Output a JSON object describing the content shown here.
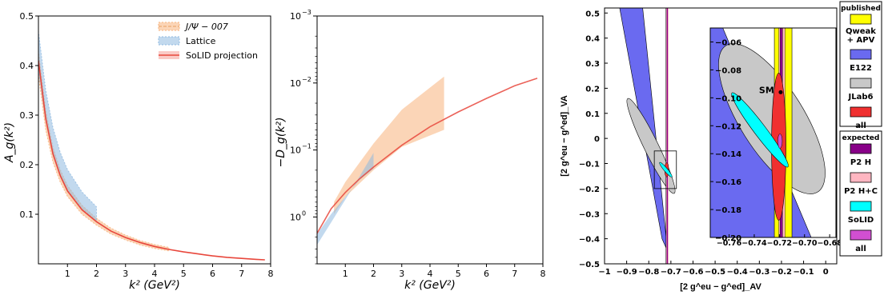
{
  "chart_data": [
    {
      "type": "line",
      "ylabel": "A_g(k²)",
      "xlabel": "k² (GeV²)",
      "xlim": [
        0,
        8
      ],
      "ylim": [
        0,
        0.5
      ],
      "xticks": [
        "1",
        "2",
        "3",
        "4",
        "5",
        "6",
        "7",
        "8"
      ],
      "yticks": [
        "0.1",
        "0.2",
        "0.3",
        "0.4",
        "0.5"
      ],
      "legend_position": "top-right",
      "legend": [
        "J/Ψ − 007",
        "Lattice",
        "SoLID projection"
      ],
      "series": [
        {
          "name": "J/Ψ − 007",
          "kind": "band",
          "color": "#f7b27b",
          "x": [
            0.0,
            0.25,
            0.5,
            0.75,
            1.0,
            1.5,
            2.0,
            2.5,
            3.0,
            3.5,
            4.0,
            4.5
          ],
          "y_low": [
            0.38,
            0.27,
            0.205,
            0.165,
            0.136,
            0.1,
            0.078,
            0.06,
            0.048,
            0.038,
            0.031,
            0.026
          ],
          "y_high": [
            0.43,
            0.31,
            0.235,
            0.19,
            0.158,
            0.118,
            0.092,
            0.072,
            0.058,
            0.047,
            0.039,
            0.033
          ]
        },
        {
          "name": "Lattice",
          "kind": "band",
          "color": "#8fb9e0",
          "x": [
            0.0,
            0.25,
            0.5,
            0.75,
            1.0,
            1.5,
            2.0
          ],
          "y_low": [
            0.39,
            0.29,
            0.225,
            0.18,
            0.15,
            0.112,
            0.087
          ],
          "y_high": [
            0.47,
            0.35,
            0.275,
            0.225,
            0.19,
            0.145,
            0.115
          ]
        },
        {
          "name": "SoLID projection",
          "kind": "line",
          "color": "#e8473c",
          "x": [
            0.0,
            0.25,
            0.5,
            0.75,
            1.0,
            1.5,
            2.0,
            2.5,
            3.0,
            3.5,
            4.0,
            4.5,
            5.0,
            5.5,
            6.0,
            6.5,
            7.0,
            7.5,
            7.8
          ],
          "y": [
            0.41,
            0.293,
            0.222,
            0.178,
            0.147,
            0.109,
            0.085,
            0.066,
            0.053,
            0.043,
            0.035,
            0.029,
            0.024,
            0.02,
            0.016,
            0.013,
            0.011,
            0.009,
            0.008
          ]
        }
      ]
    },
    {
      "type": "line",
      "ylabel": "−D_g(k²)",
      "xlabel": "k² (GeV²)",
      "yscale": "log (inverted)",
      "xlim": [
        0,
        8
      ],
      "ylim": [
        0.001,
        5
      ],
      "xticks": [
        "1",
        "2",
        "3",
        "4",
        "5",
        "6",
        "7",
        "8"
      ],
      "yticks": [
        {
          "base": "10",
          "exp": "−3",
          "value": 0.001
        },
        {
          "base": "10",
          "exp": "−2",
          "value": 0.01
        },
        {
          "base": "10",
          "exp": "−1",
          "value": 0.1
        },
        {
          "base": "10",
          "exp": "0",
          "value": 1
        }
      ],
      "series": [
        {
          "name": "J/Ψ − 007",
          "kind": "band",
          "color": "#f7b27b",
          "x": [
            0.6,
            1.0,
            2.0,
            3.0,
            4.5
          ],
          "y_low": [
            0.6,
            0.3,
            0.08,
            0.025,
            0.008
          ],
          "y_high": [
            0.9,
            0.5,
            0.2,
            0.09,
            0.05
          ]
        },
        {
          "name": "Lattice",
          "kind": "band",
          "color": "#8fb9e0",
          "x": [
            0.0,
            0.5,
            1.0,
            1.5,
            2.0
          ],
          "y_low": [
            1.8,
            0.9,
            0.5,
            0.28,
            0.19
          ],
          "y_high": [
            2.6,
            1.2,
            0.55,
            0.25,
            0.11
          ]
        },
        {
          "name": "SoLID projection",
          "kind": "line",
          "color": "#e8473c",
          "x": [
            0.0,
            0.5,
            1.0,
            1.5,
            2.0,
            3.0,
            4.0,
            5.0,
            6.0,
            7.0,
            7.8
          ],
          "y": [
            1.75,
            0.75,
            0.43,
            0.27,
            0.18,
            0.085,
            0.045,
            0.027,
            0.017,
            0.011,
            0.0085
          ]
        }
      ]
    },
    {
      "type": "scatter",
      "xlabel": "[2 g^eu − g^ed]_AV",
      "ylabel": "[2 g^eu − g^ed]_VA",
      "xlim": [
        -1,
        0.05
      ],
      "ylim": [
        -0.5,
        0.52
      ],
      "xticks": [
        "−1",
        "−0.9",
        "−0.8",
        "−0.7",
        "−0.6",
        "−0.5",
        "−0.4",
        "−0.3",
        "−0.2",
        "−0.1",
        "0"
      ],
      "yticks": [
        "−0.5",
        "−0.4",
        "−0.3",
        "−0.2",
        "−0.1",
        "0",
        "0.1",
        "0.2",
        "0.3",
        "0.4",
        "0.5"
      ],
      "inset": {
        "xlim": [
          -0.775,
          -0.675
        ],
        "ylim": [
          -0.2,
          -0.05
        ],
        "xticks": [
          "−0.76",
          "−0.74",
          "−0.72",
          "−0.70",
          "−0.68"
        ],
        "yticks": [
          "−0.06",
          "−0.08",
          "−0.10",
          "−0.12",
          "−0.14",
          "−0.16",
          "−0.18",
          "−0.20"
        ],
        "annotation": "SM",
        "sm_point": [
          -0.719,
          -0.096
        ]
      },
      "legend_position": "right",
      "legend_groups": [
        {
          "title": "published",
          "entries": [
            {
              "label": "Qweak + APV",
              "color": "#ffff00"
            },
            {
              "label": "E122",
              "color": "#6a6af0"
            },
            {
              "label": "JLab6",
              "color": "#c8c8c8"
            },
            {
              "label": "all",
              "color": "#f03030"
            }
          ]
        },
        {
          "title": "expected",
          "entries": [
            {
              "label": "P2 H",
              "color": "#880088"
            },
            {
              "label": "P2 H+C",
              "color": "#ffb6c1"
            },
            {
              "label": "SoLID",
              "color": "#00ffff"
            },
            {
              "label": "all",
              "color": "#d14fd1"
            }
          ]
        }
      ]
    }
  ]
}
